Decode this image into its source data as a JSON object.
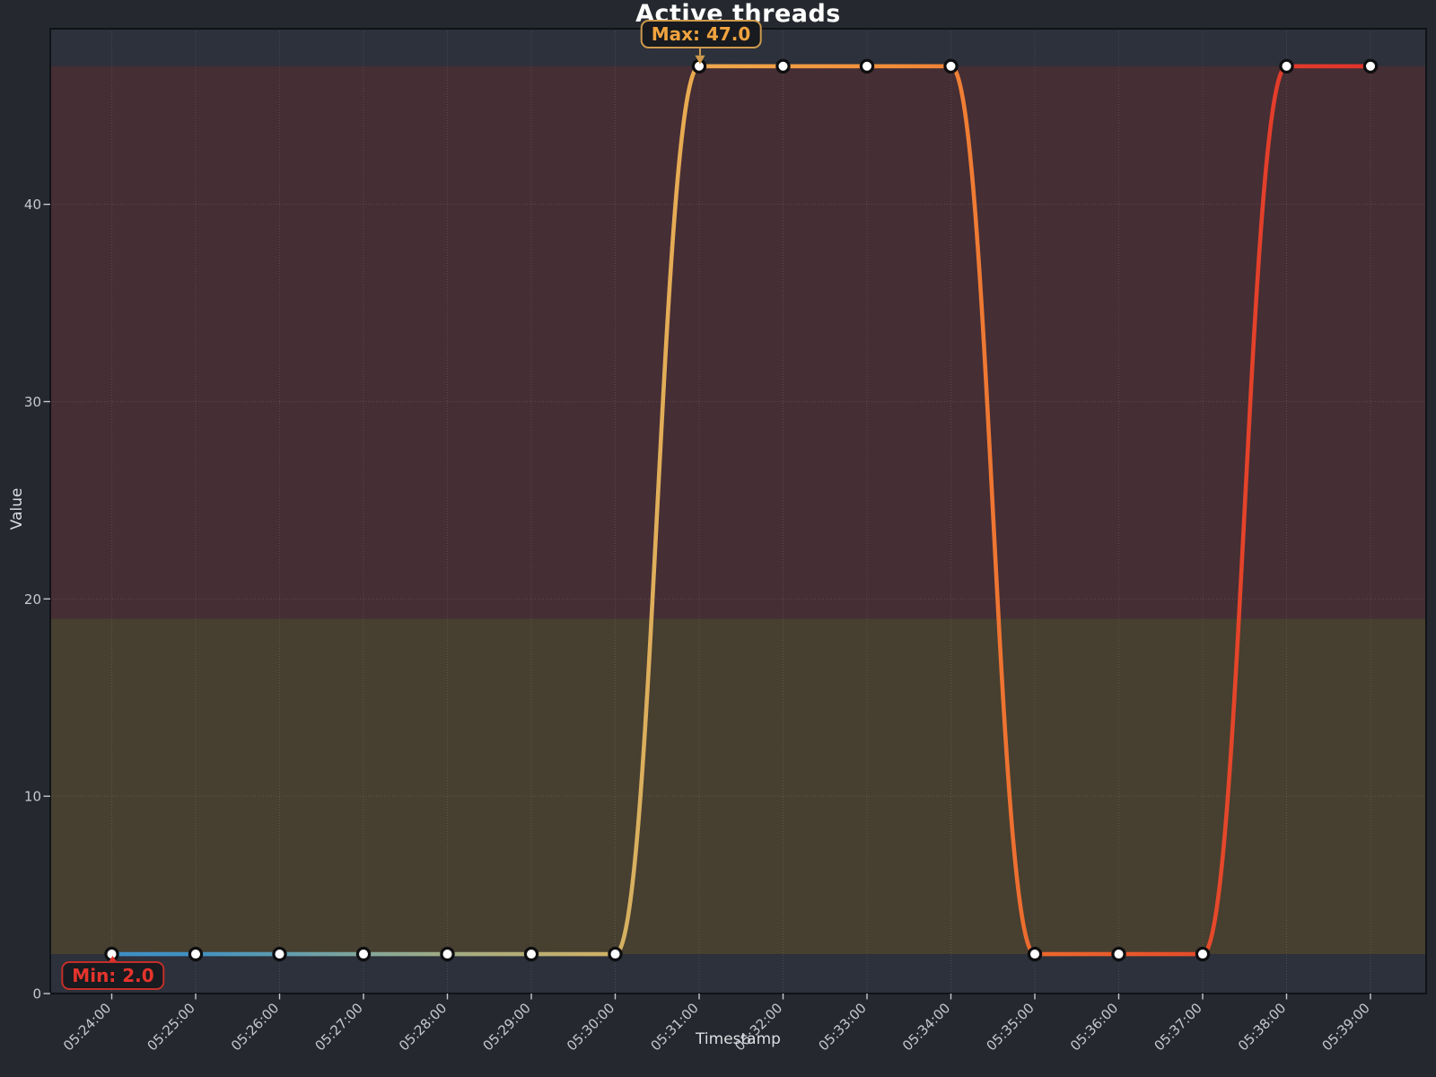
{
  "figure": {
    "title": "Active threads",
    "xlabel": "Timestamp",
    "ylabel": "Value"
  },
  "annotations": {
    "max": {
      "label": "Max: 47.0",
      "text_color": "#F0A33E",
      "border_color": "#CE9A4D",
      "arrow_color": "#CE9A4D"
    },
    "min": {
      "label": "Min: 2.0",
      "text_color": "#E5342C",
      "border_color": "#C32F2A",
      "arrow_color": "#E5342C"
    }
  },
  "chart_data": {
    "type": "line",
    "title": "Active threads",
    "xlabel": "Timestamp",
    "ylabel": "Value",
    "x_labels": [
      "05:24:00",
      "05:25:00",
      "05:26:00",
      "05:27:00",
      "05:28:00",
      "05:29:00",
      "05:30:00",
      "05:31:00",
      "05:32:00",
      "05:33:00",
      "05:34:00",
      "05:35:00",
      "05:36:00",
      "05:37:00",
      "05:38:00",
      "05:39:00"
    ],
    "values": [
      2,
      2,
      2,
      2,
      2,
      2,
      2,
      47,
      47,
      47,
      47,
      2,
      2,
      2,
      47,
      47
    ],
    "max_value": 47.0,
    "min_value": 2.0,
    "ylim": [
      0,
      48.9
    ],
    "yticks": [
      0,
      10,
      20,
      30,
      40
    ],
    "grid": true,
    "legend": "none",
    "plot_background": "#2C313B",
    "bands": [
      {
        "from": 19,
        "to": 47,
        "color": "#452E34"
      },
      {
        "from": 2,
        "to": 19,
        "color": "#473F30"
      }
    ],
    "marker": {
      "fill": "#FFFFFF",
      "outline": "#0E0E10"
    },
    "line_gradient_stops": [
      {
        "offset": 0.0,
        "color": "#3E8EC6"
      },
      {
        "offset": 0.0667,
        "color": "#4292C2"
      },
      {
        "offset": 0.1333,
        "color": "#5F9CB1"
      },
      {
        "offset": 0.2,
        "color": "#83A69A"
      },
      {
        "offset": 0.2667,
        "color": "#A1AC84"
      },
      {
        "offset": 0.3333,
        "color": "#B9AE75"
      },
      {
        "offset": 0.4,
        "color": "#D2B264"
      },
      {
        "offset": 0.4667,
        "color": "#EEA94E"
      },
      {
        "offset": 0.5333,
        "color": "#F19D44"
      },
      {
        "offset": 0.6,
        "color": "#F2913C"
      },
      {
        "offset": 0.6667,
        "color": "#F08236"
      },
      {
        "offset": 0.7333,
        "color": "#EC6A2E"
      },
      {
        "offset": 0.8,
        "color": "#E95A2B"
      },
      {
        "offset": 0.8667,
        "color": "#E64B2A"
      },
      {
        "offset": 0.9333,
        "color": "#E23B2B"
      },
      {
        "offset": 1.0,
        "color": "#E0342C"
      }
    ]
  }
}
